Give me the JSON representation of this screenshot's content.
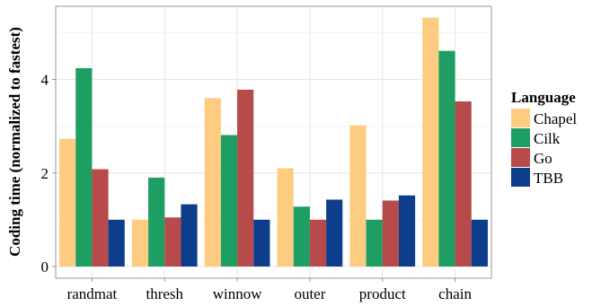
{
  "chart_data": {
    "type": "bar",
    "title": "",
    "xlabel": "",
    "ylabel": "Coding time (normalized to fastest)",
    "ylim": [
      0,
      5.5
    ],
    "yticks": [
      0,
      2,
      4
    ],
    "grid": true,
    "legend_position": "right",
    "legend_title": "Language",
    "categories": [
      "randmat",
      "thresh",
      "winnow",
      "outer",
      "product",
      "chain"
    ],
    "series": [
      {
        "name": "Chapel",
        "color": "#FECC81",
        "values": [
          2.73,
          1.0,
          3.6,
          2.1,
          3.02,
          5.32
        ]
      },
      {
        "name": "Cilk",
        "color": "#1F9E63",
        "values": [
          4.24,
          1.9,
          2.81,
          1.28,
          1.0,
          4.61
        ]
      },
      {
        "name": "Go",
        "color": "#B74B4B",
        "values": [
          2.08,
          1.05,
          3.78,
          1.0,
          1.41,
          3.53
        ]
      },
      {
        "name": "TBB",
        "color": "#0E3D8C",
        "values": [
          1.0,
          1.33,
          1.0,
          1.43,
          1.52,
          1.0
        ]
      }
    ]
  }
}
